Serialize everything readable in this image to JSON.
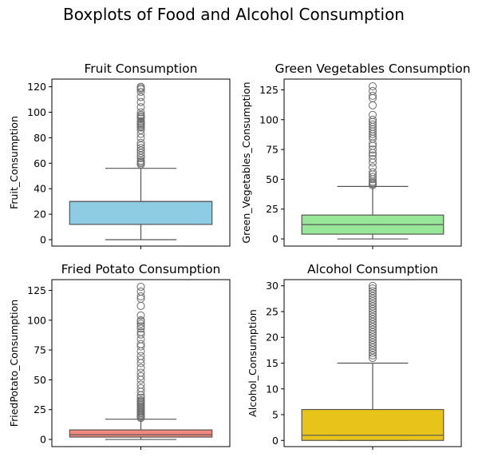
{
  "figure_title": "Boxplots of Food and Alcohol Consumption",
  "colors": {
    "whisker": "#555555",
    "flier": "#6b6b6b",
    "axes": "#000000"
  },
  "chart_data": [
    {
      "type": "boxplot",
      "title": "Fruit Consumption",
      "ylabel": "Fruit_Consumption",
      "ylim": [
        -5,
        126
      ],
      "yticks": [
        0,
        20,
        40,
        60,
        80,
        100,
        120
      ],
      "box_color": "#8ecce3",
      "min": 0,
      "q1": 12,
      "median": 30,
      "q3": 30,
      "max": 56,
      "outliers": [
        59,
        60,
        61,
        62,
        64,
        66,
        68,
        70,
        72,
        74,
        76,
        80,
        83,
        86,
        88,
        89,
        90,
        91,
        92,
        93,
        95,
        96,
        97,
        98,
        100,
        104,
        108,
        112,
        116,
        118,
        119,
        120
      ]
    },
    {
      "type": "boxplot",
      "title": "Green Vegetables Consumption",
      "ylabel": "Green_Vegetables_Consumption",
      "ylim": [
        -6,
        134
      ],
      "yticks": [
        0,
        25,
        50,
        75,
        100,
        125
      ],
      "box_color": "#98e698",
      "min": 0,
      "q1": 4,
      "median": 12,
      "q3": 20,
      "max": 44,
      "outliers": [
        45,
        46,
        47,
        48,
        50,
        52,
        54,
        56,
        60,
        64,
        67,
        70,
        72,
        75,
        78,
        80,
        84,
        86,
        88,
        90,
        92,
        94,
        96,
        98,
        100,
        104,
        112,
        118,
        120,
        124,
        128
      ]
    },
    {
      "type": "boxplot",
      "title": "Fried Potato Consumption",
      "ylabel": "FriedPotato_Consumption",
      "ylim": [
        -6,
        134
      ],
      "yticks": [
        0,
        25,
        50,
        75,
        100,
        125
      ],
      "box_color": "#f08880",
      "min": 0,
      "q1": 2,
      "median": 4,
      "q3": 8,
      "max": 17,
      "outliers": [
        18,
        19,
        20,
        21,
        22,
        23,
        24,
        25,
        26,
        27,
        28,
        29,
        30,
        31,
        32,
        33,
        35,
        37,
        40,
        43,
        46,
        50,
        53,
        56,
        60,
        64,
        67,
        70,
        74,
        78,
        80,
        84,
        88,
        90,
        93,
        95,
        97,
        99,
        100,
        104,
        112,
        118,
        120,
        124,
        128
      ]
    },
    {
      "type": "boxplot",
      "title": "Alcohol Consumption",
      "ylabel": "Alcohol_Consumption",
      "ylim": [
        -1.2,
        31.2
      ],
      "yticks": [
        0,
        5,
        10,
        15,
        20,
        25,
        30
      ],
      "box_color": "#e8c41a",
      "min": 0,
      "q1": 0,
      "median": 1,
      "q3": 6,
      "max": 15,
      "outliers": [
        16,
        16.5,
        17,
        17.5,
        18,
        18.5,
        19,
        19.5,
        20,
        20.5,
        21,
        21.5,
        22,
        22.5,
        23,
        23.5,
        24,
        24.5,
        25,
        25.5,
        26,
        26.5,
        27,
        27.5,
        28,
        28.5,
        29,
        29.5,
        30
      ]
    }
  ]
}
